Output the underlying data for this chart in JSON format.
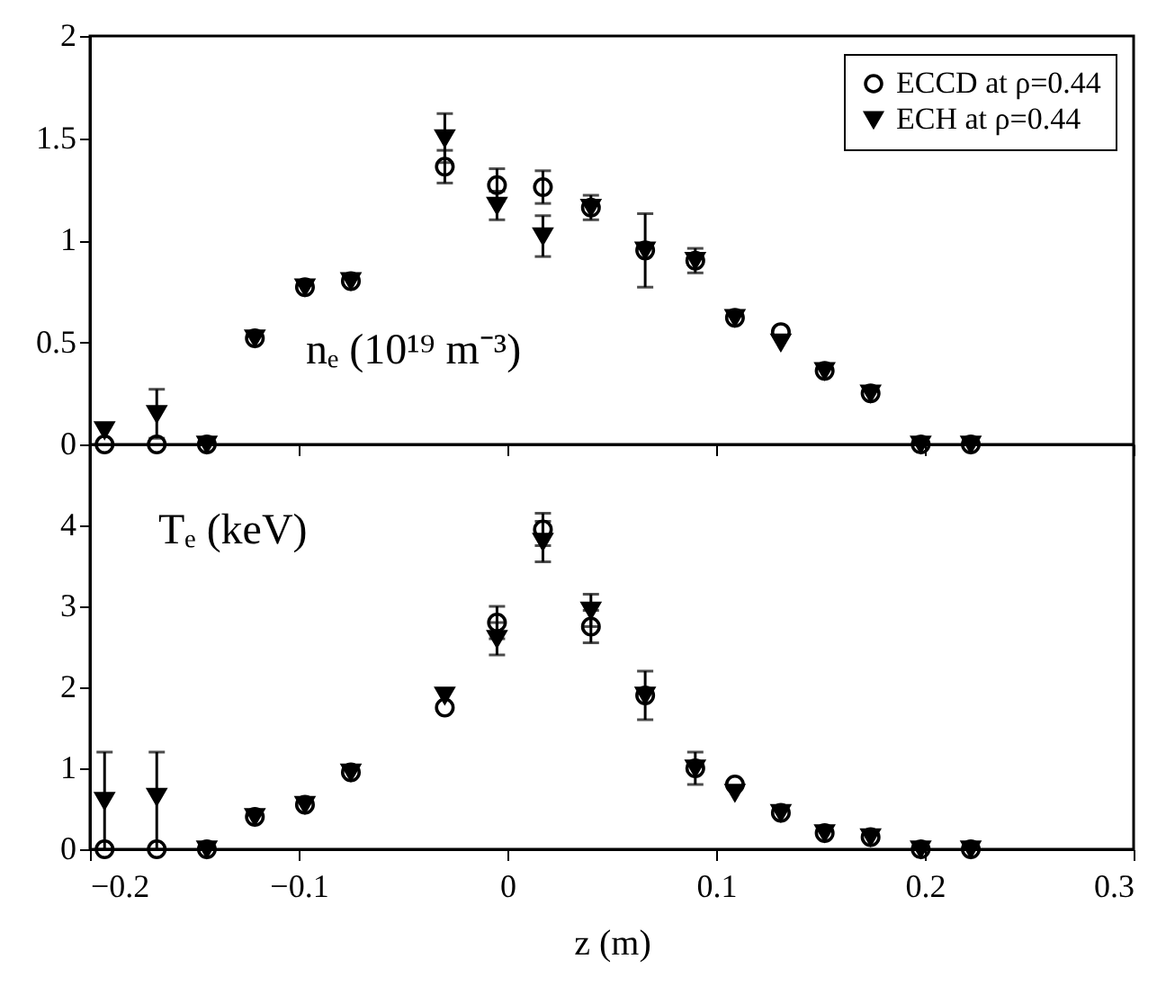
{
  "chart_data": [
    {
      "type": "scatter",
      "ylabel": "nₑ (10¹⁹ m⁻³)",
      "xlim": [
        -0.2,
        0.3
      ],
      "xticks": [
        -0.2,
        -0.1,
        0,
        0.1,
        0.2,
        0.3
      ],
      "ylim": [
        0,
        2
      ],
      "yticks": [
        0,
        0.5,
        1,
        1.5,
        2
      ],
      "tick_labels": "y",
      "legend": "top right",
      "grid": false,
      "x": [
        -0.193,
        -0.168,
        -0.144,
        -0.121,
        -0.097,
        -0.075,
        -0.03,
        -0.005,
        0.017,
        0.04,
        0.066,
        0.09,
        0.109,
        0.131,
        0.152,
        0.174,
        0.198,
        0.222
      ],
      "series": [
        {
          "name": "ECCD at ρ=0.44",
          "color": "#000000",
          "marker": "circle",
          "values": [
            0,
            0,
            0,
            0.52,
            0.77,
            0.8,
            1.36,
            1.27,
            1.26,
            1.16,
            0.95,
            0.9,
            0.62,
            0.55,
            0.36,
            0.25,
            0,
            0
          ],
          "errors": [
            null,
            null,
            null,
            null,
            null,
            null,
            0.08,
            0.08,
            0.08,
            null,
            null,
            null,
            null,
            null,
            null,
            null,
            null,
            null
          ]
        },
        {
          "name": "ECH at ρ=0.44",
          "color": "#000000",
          "marker": "triangle",
          "values": [
            0.07,
            0.15,
            0,
            0.52,
            0.77,
            0.8,
            1.5,
            1.17,
            1.02,
            1.16,
            0.95,
            0.9,
            0.62,
            0.5,
            0.36,
            0.25,
            0,
            0
          ],
          "errors": [
            null,
            0.12,
            null,
            null,
            null,
            null,
            0.12,
            0.07,
            0.1,
            0.06,
            0.18,
            0.06,
            null,
            null,
            null,
            null,
            null,
            null
          ]
        }
      ]
    },
    {
      "type": "scatter",
      "ylabel": "Tₑ (keV)",
      "xlabel": "z (m)",
      "xlim": [
        -0.2,
        0.3
      ],
      "xticks": [
        -0.2,
        -0.1,
        0,
        0.1,
        0.2,
        0.3
      ],
      "ylim": [
        0,
        5
      ],
      "yticks": [
        0,
        1,
        2,
        3,
        4
      ],
      "grid": false,
      "legend": false,
      "x": [
        -0.193,
        -0.168,
        -0.144,
        -0.121,
        -0.097,
        -0.075,
        -0.03,
        -0.005,
        0.017,
        0.04,
        0.066,
        0.09,
        0.109,
        0.131,
        0.152,
        0.174,
        0.198,
        0.222
      ],
      "series": [
        {
          "color": "#000000",
          "marker": "circle",
          "values": [
            0,
            0,
            0,
            0.4,
            0.55,
            0.95,
            1.75,
            2.8,
            3.95,
            2.75,
            1.9,
            1.0,
            0.8,
            0.45,
            0.2,
            0.15,
            0,
            0
          ],
          "errors": [
            null,
            null,
            null,
            null,
            null,
            null,
            null,
            0.2,
            0.2,
            0.2,
            null,
            null,
            null,
            null,
            null,
            null,
            null,
            null
          ]
        },
        {
          "color": "#000000",
          "marker": "triangle",
          "values": [
            0.6,
            0.65,
            0,
            0.4,
            0.55,
            0.95,
            1.9,
            2.6,
            3.8,
            2.95,
            1.9,
            1.0,
            0.7,
            0.45,
            0.2,
            0.15,
            0,
            0
          ],
          "errors": [
            0.6,
            [
              0,
              1.2
            ],
            null,
            null,
            null,
            null,
            null,
            0.2,
            0.25,
            0.2,
            0.3,
            0.2,
            null,
            null,
            null,
            null,
            null,
            null
          ]
        }
      ]
    }
  ]
}
